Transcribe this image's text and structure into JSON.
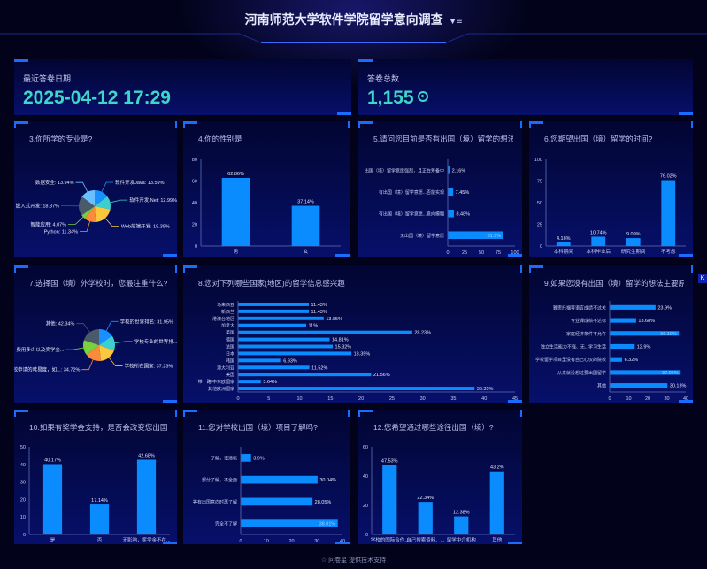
{
  "header": {
    "title": "河南师范大学软件学院留学意向调查",
    "filter_icon": "filter-icon"
  },
  "cards": {
    "latest": {
      "label": "最近答卷日期",
      "value": "2025-04-12 17:29"
    },
    "total": {
      "label": "答卷总数",
      "value": "1,155",
      "icon": "eye-icon"
    }
  },
  "colors": {
    "bar": "#0a8cff",
    "accent": "#3ed6c8",
    "pie": [
      "#1890ff",
      "#3ccfcf",
      "#fbc73c",
      "#f98b3b",
      "#7ad13d",
      "#4a5a6a",
      "#69c0ff",
      "#c5e03a"
    ]
  },
  "side_button": "K",
  "footer": {
    "icon": "star-icon",
    "text": "问卷星 提供技术支持"
  },
  "chart_data": [
    {
      "id": "q3",
      "type": "pie",
      "title": "3.你所学的专业是?",
      "categories": [
        "软件开发Java",
        "软件开发.Net",
        "Web前端开发",
        "Python",
        "智能应用",
        "嵌入式开发",
        "数据安全"
      ],
      "values": [
        13.59,
        12.99,
        19.39,
        11.34,
        4.07,
        18.87,
        13.94
      ],
      "unit": "%"
    },
    {
      "id": "q4",
      "type": "bar",
      "title": "4.你的性别是",
      "categories": [
        "男",
        "女"
      ],
      "values": [
        62.86,
        37.14
      ],
      "ylim": [
        0,
        80
      ],
      "yticks": [
        0,
        20,
        40,
        60,
        80
      ],
      "unit": "%"
    },
    {
      "id": "q5",
      "type": "hbar",
      "title": "5.请问您目前是否有出国（境）留学的想法?...",
      "categories": [
        "出国（境）留学意愿强烈，且正在筹备中",
        "有出国（境）留学意愿...否能实现",
        "有出国（境）留学意愿...意向模糊",
        "无出国（境）留学意愿"
      ],
      "values": [
        2.16,
        7.45,
        8.48,
        81.9
      ],
      "xlim": [
        0,
        100
      ],
      "xticks": [
        0,
        25,
        50,
        75,
        100
      ],
      "unit": "%"
    },
    {
      "id": "q6",
      "type": "bar",
      "title": "6.您期望出国（境）留学的时间?",
      "categories": [
        "本科期间",
        "本科毕业后",
        "研究生期间",
        "不考虑"
      ],
      "values": [
        4.16,
        10.74,
        9.09,
        76.02
      ],
      "ylim": [
        0,
        100
      ],
      "yticks": [
        0,
        25,
        50,
        75,
        100
      ],
      "unit": "%"
    },
    {
      "id": "q7",
      "type": "pie",
      "title": "7.选择国（境）外学校时，您最注重什么?...",
      "categories": [
        "学校的世界排名",
        "学校专业的世界排...",
        "学校所在国家",
        "学校申请的难易度，如...",
        "费用多少以及奖学金...",
        "其他"
      ],
      "values": [
        31.95,
        null,
        37.23,
        34.72,
        null,
        42.34
      ],
      "unit": "%"
    },
    {
      "id": "q8",
      "type": "hbar",
      "title": "8.您对下列哪些国家(地区)的留学信息感兴趣",
      "categories": [
        "马来西亚",
        "新西兰",
        "港澳台地区",
        "加拿大",
        "英国",
        "德国",
        "法国",
        "日本",
        "韩国",
        "澳大利亚",
        "美国",
        "一带一路/中东欧国家",
        "其他欧洲国家"
      ],
      "values": [
        11.43,
        11.43,
        13.85,
        11,
        28.23,
        14.81,
        15.32,
        18.35,
        6.93,
        11.52,
        21.56,
        3.64,
        38.35
      ],
      "xlim": [
        0,
        45
      ],
      "xticks": [
        0,
        5,
        10,
        15,
        20,
        25,
        30,
        35,
        40,
        45
      ],
      "unit": "%"
    },
    {
      "id": "q9",
      "type": "hbar",
      "title": "9.如果您没有出国（境）留学的想法主要原...",
      "categories": [
        "雅思托福等语言成绩不过关",
        "专业课成绩不达标",
        "家庭经济条件不允许",
        "独立生活能力不强、无...学习生活",
        "学校留学项目里没有自己心仪的院校",
        "从来就没想过要出国留学",
        "其他"
      ],
      "values": [
        23.9,
        13.68,
        36.19,
        12.9,
        6.32,
        37.06,
        30.13
      ],
      "xlim": [
        0,
        40
      ],
      "xticks": [
        0,
        10,
        20,
        30,
        40
      ],
      "unit": "%"
    },
    {
      "id": "q10",
      "type": "bar",
      "title": "10.如果有奖学金支持，是否会改变您出国（...",
      "categories": [
        "是",
        "否",
        "无影响，奖学金不在..."
      ],
      "values": [
        40.17,
        17.14,
        42.68
      ],
      "ylim": [
        0,
        50
      ],
      "yticks": [
        0,
        10,
        20,
        30,
        40,
        50
      ],
      "unit": "%"
    },
    {
      "id": "q11",
      "type": "hbar",
      "title": "11.您对学校出国（境）项目了解吗?",
      "categories": [
        "了解，很清晰",
        "部分了解，不全面",
        "等有出国意向时再了解",
        "完全不了解"
      ],
      "values": [
        3.9,
        30.04,
        28.05,
        38.01
      ],
      "xlim": [
        0,
        40
      ],
      "xticks": [
        0,
        10,
        20,
        30,
        40
      ],
      "unit": "%"
    },
    {
      "id": "q12",
      "type": "bar",
      "title": "12.您希望通过哪些途径出国（境）?",
      "categories": [
        "学校的国际合作...",
        "自己搜索资料、...",
        "留学中介机构",
        "其他"
      ],
      "values": [
        47.53,
        22.34,
        12.38,
        43.2
      ],
      "ylim": [
        0,
        60
      ],
      "yticks": [
        0,
        20,
        40,
        60
      ],
      "unit": "%"
    }
  ]
}
